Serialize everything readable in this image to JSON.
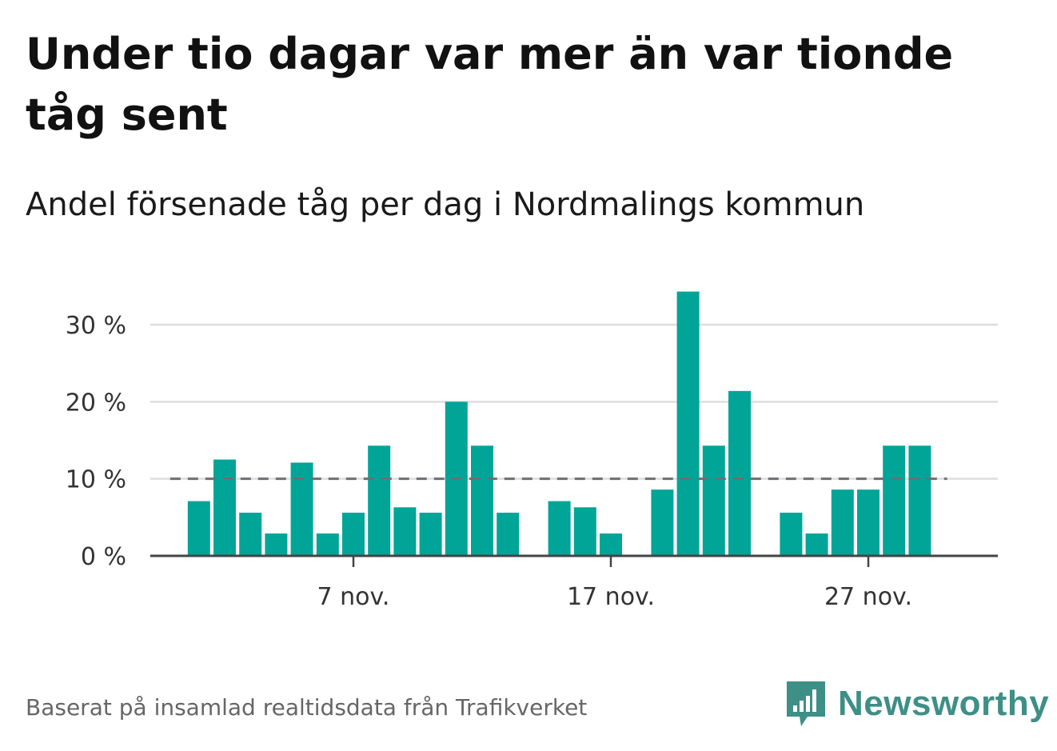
{
  "title": "Under tio dagar var mer än var tionde tåg sent",
  "subtitle": "Andel försenade tåg per dag i Nordmalings kommun",
  "source": "Baserat på insamlad realtidsdata från Trafikverket",
  "logo": {
    "text": "Newsworthy",
    "icon": "bar-chart-speech-bubble-icon"
  },
  "colors": {
    "bar": "#00a598",
    "reference": "#6e6e73",
    "grid": "#dedede",
    "axis": "#444444"
  },
  "chart_data": {
    "type": "bar",
    "x_unit": "day of November",
    "x": [
      1,
      2,
      3,
      4,
      5,
      6,
      7,
      8,
      9,
      10,
      11,
      12,
      13,
      14,
      15,
      16,
      17,
      18,
      19,
      20,
      21,
      22,
      23,
      24,
      25,
      26,
      27,
      28,
      29,
      30
    ],
    "values": [
      7.1,
      12.5,
      5.6,
      2.9,
      12.1,
      2.9,
      5.6,
      14.3,
      6.3,
      5.6,
      20.0,
      14.3,
      5.6,
      null,
      7.1,
      6.3,
      2.9,
      null,
      8.6,
      34.3,
      14.3,
      21.4,
      null,
      5.6,
      2.9,
      8.6,
      8.6,
      14.3,
      14.3,
      null
    ],
    "x_ticks": [
      {
        "x": 7,
        "label": "7 nov."
      },
      {
        "x": 17,
        "label": "17 nov."
      },
      {
        "x": 27,
        "label": "27 nov."
      }
    ],
    "y_ticks": [
      {
        "value": 0,
        "label": "0 %"
      },
      {
        "value": 10,
        "label": "10 %"
      },
      {
        "value": 20,
        "label": "20 %"
      },
      {
        "value": 30,
        "label": "30 %"
      }
    ],
    "ylim": [
      0,
      35
    ],
    "reference_line": {
      "value": 10,
      "style": "dashed"
    },
    "grid": true,
    "legend": "none"
  }
}
